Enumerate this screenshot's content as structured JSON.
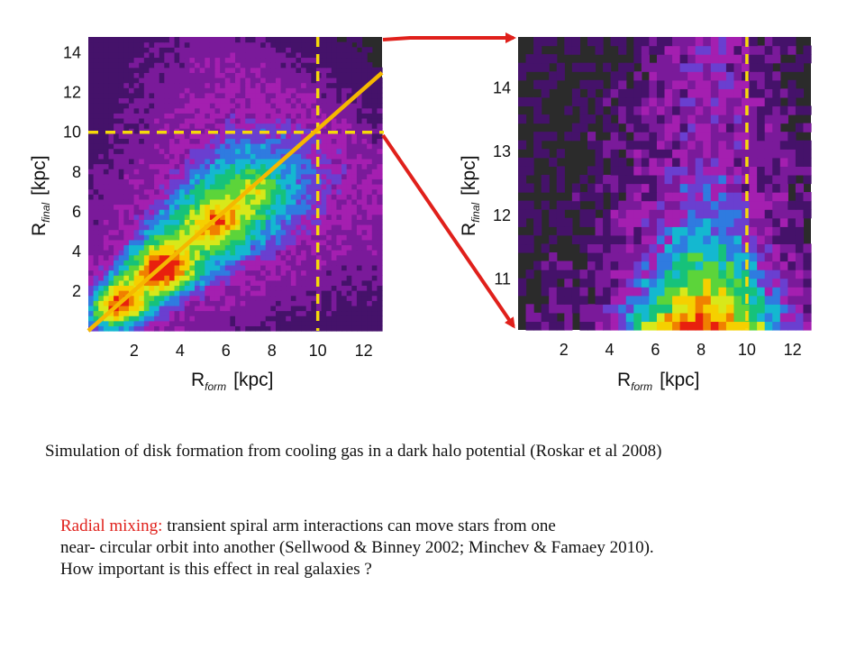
{
  "colors": {
    "panel_bg": "#2b2b2b",
    "guide": "#f5d90a",
    "fit_line": "#f5b800",
    "zoom_arrows": "#e0201b",
    "text": "#111111",
    "highlight": "#e0201b"
  },
  "colormap": [
    "#2b2b2b",
    "#45126a",
    "#7a1a9a",
    "#a41fb0",
    "#6a3fd0",
    "#2f7be0",
    "#14b8d0",
    "#16c27a",
    "#5cd43a",
    "#d8e81a",
    "#f5d000",
    "#f08000",
    "#e8200e"
  ],
  "chart_data": [
    {
      "type": "heatmap",
      "title": "",
      "xlabel": "R_form [kpc]",
      "ylabel": "R_final [kpc]",
      "xlim": [
        0,
        12.8
      ],
      "ylim": [
        0,
        14.8
      ],
      "xticks": [
        2,
        4,
        6,
        8,
        10,
        12
      ],
      "yticks": [
        2,
        4,
        6,
        8,
        10,
        12,
        14
      ],
      "guides": {
        "vertical_x": 10,
        "horizontal_y": 10
      },
      "fit_line": {
        "x": [
          0,
          12.8
        ],
        "y": [
          0,
          13
        ]
      },
      "density_clumps": [
        {
          "x": 1.2,
          "y": 1.2,
          "level": 12
        },
        {
          "x": 3.3,
          "y": 3.2,
          "level": 12
        },
        {
          "x": 5.6,
          "y": 5.5,
          "level": 10
        },
        {
          "x": 7.4,
          "y": 7.2,
          "level": 9
        }
      ],
      "grid": false
    },
    {
      "type": "heatmap",
      "title": "",
      "xlabel": "R_form [kpc]",
      "ylabel": "R_final [kpc]",
      "xlim": [
        0,
        12.8
      ],
      "ylim": [
        10.2,
        14.8
      ],
      "xticks": [
        2,
        4,
        6,
        8,
        10,
        12
      ],
      "yticks": [
        11,
        12,
        13,
        14
      ],
      "guides": {
        "vertical_x": 10
      },
      "density_peak": {
        "x": 8,
        "y": 10.5,
        "level": 12
      },
      "grid": false
    }
  ],
  "text": {
    "caption": "Simulation of disk formation from cooling gas in a dark halo potential (Roskar et al 2008)",
    "radial_label": "Radial mixing:",
    "line1_rest": " transient spiral arm interactions can move stars from one",
    "line2": "near- circular orbit into another (Sellwood & Binney 2002;  Minchev & Famaey 2010).",
    "line3": "How important is this effect in real galaxies ?"
  },
  "axis_text": {
    "R": "R",
    "form_sub": "form",
    "final_sub": "final",
    "unit": "[kpc]"
  }
}
